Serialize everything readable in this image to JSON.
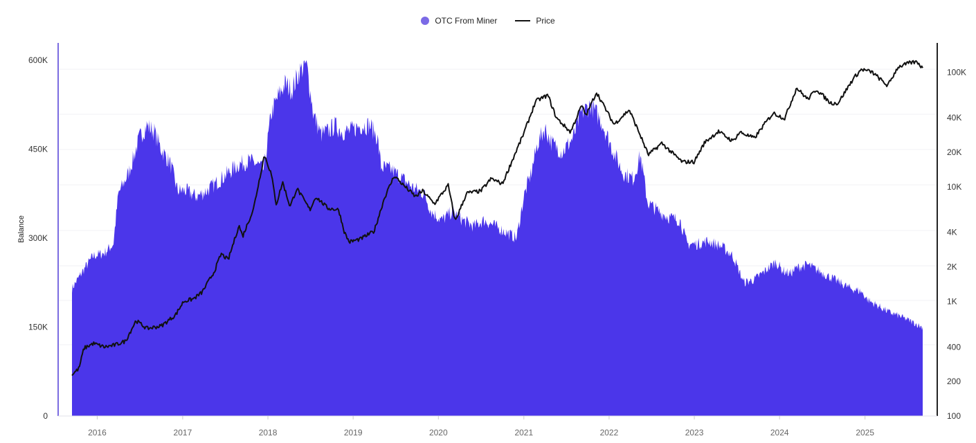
{
  "legend": {
    "series1": "OTC From Miner",
    "series2": "Price"
  },
  "colors": {
    "balance": "#4b36ea",
    "balance_legend": "#7b6ae6",
    "price": "#111111",
    "axis": "#7a6be0"
  },
  "chart_data": {
    "type": "area",
    "ylabel": "Balance",
    "y_left": {
      "min": 0,
      "max": 600000,
      "ticks": [
        0,
        150000,
        300000,
        450000,
        600000
      ],
      "tick_labels": [
        "0",
        "150K",
        "300K",
        "450K",
        "600K"
      ]
    },
    "y_right": {
      "scale": "log",
      "min": 100,
      "max": 180000,
      "ticks": [
        100,
        200,
        400,
        1000,
        2000,
        4000,
        10000,
        20000,
        40000,
        100000
      ],
      "tick_labels": [
        "100",
        "200",
        "400",
        "1K",
        "2K",
        "4K",
        "10K",
        "20K",
        "40K",
        "100K"
      ]
    },
    "x": {
      "min": "2015-09-15",
      "max": "2025-09-05",
      "ticks": [
        "2016-01-01",
        "2017-01-01",
        "2018-01-01",
        "2019-01-01",
        "2020-01-01",
        "2021-01-01",
        "2022-01-01",
        "2023-01-01",
        "2024-01-01",
        "2025-01-01"
      ],
      "tick_labels": [
        "2016",
        "2017",
        "2018",
        "2019",
        "2020",
        "2021",
        "2022",
        "2023",
        "2024",
        "2025"
      ]
    },
    "grid": true,
    "legend_position": "top-center",
    "series": [
      {
        "name": "OTC From Miner",
        "axis": "left",
        "type": "area",
        "points": [
          [
            "2015-09-15",
            215000
          ],
          [
            "2015-11-01",
            245000
          ],
          [
            "2015-12-15",
            270000
          ],
          [
            "2016-02-01",
            275000
          ],
          [
            "2016-03-10",
            290000
          ],
          [
            "2016-04-01",
            375000
          ],
          [
            "2016-05-15",
            410000
          ],
          [
            "2016-07-01",
            470000
          ],
          [
            "2016-08-01",
            490000
          ],
          [
            "2016-09-01",
            480000
          ],
          [
            "2016-10-01",
            450000
          ],
          [
            "2016-11-10",
            425000
          ],
          [
            "2016-12-10",
            380000
          ],
          [
            "2017-01-15",
            380000
          ],
          [
            "2017-03-01",
            370000
          ],
          [
            "2017-04-15",
            380000
          ],
          [
            "2017-06-01",
            395000
          ],
          [
            "2017-07-15",
            410000
          ],
          [
            "2017-09-01",
            425000
          ],
          [
            "2017-10-15",
            430000
          ],
          [
            "2017-11-15",
            425000
          ],
          [
            "2017-12-15",
            415000
          ],
          [
            "2018-01-15",
            510000
          ],
          [
            "2018-02-15",
            540000
          ],
          [
            "2018-03-15",
            560000
          ],
          [
            "2018-04-15",
            550000
          ],
          [
            "2018-05-15",
            580000
          ],
          [
            "2018-06-15",
            595000
          ],
          [
            "2018-07-15",
            510000
          ],
          [
            "2018-08-15",
            475000
          ],
          [
            "2018-09-15",
            480000
          ],
          [
            "2018-10-15",
            490000
          ],
          [
            "2018-11-15",
            480000
          ],
          [
            "2018-12-15",
            480000
          ],
          [
            "2019-02-01",
            490000
          ],
          [
            "2019-03-15",
            490000
          ],
          [
            "2019-04-15",
            470000
          ],
          [
            "2019-05-01",
            420000
          ],
          [
            "2019-06-15",
            415000
          ],
          [
            "2019-08-01",
            400000
          ],
          [
            "2019-09-15",
            385000
          ],
          [
            "2019-11-01",
            375000
          ],
          [
            "2019-12-01",
            345000
          ],
          [
            "2020-01-15",
            330000
          ],
          [
            "2020-03-01",
            345000
          ],
          [
            "2020-04-15",
            330000
          ],
          [
            "2020-06-01",
            320000
          ],
          [
            "2020-07-15",
            330000
          ],
          [
            "2020-09-01",
            320000
          ],
          [
            "2020-10-15",
            310000
          ],
          [
            "2020-12-01",
            300000
          ],
          [
            "2021-01-01",
            370000
          ],
          [
            "2021-02-01",
            410000
          ],
          [
            "2021-03-01",
            460000
          ],
          [
            "2021-04-01",
            485000
          ],
          [
            "2021-05-01",
            460000
          ],
          [
            "2021-06-15",
            445000
          ],
          [
            "2021-08-01",
            470000
          ],
          [
            "2021-09-01",
            510000
          ],
          [
            "2021-10-15",
            525000
          ],
          [
            "2021-12-01",
            495000
          ],
          [
            "2022-01-15",
            450000
          ],
          [
            "2022-03-01",
            410000
          ],
          [
            "2022-04-15",
            400000
          ],
          [
            "2022-05-15",
            440000
          ],
          [
            "2022-06-15",
            360000
          ],
          [
            "2022-08-01",
            345000
          ],
          [
            "2022-09-15",
            335000
          ],
          [
            "2022-11-01",
            330000
          ],
          [
            "2022-12-01",
            290000
          ],
          [
            "2023-01-15",
            290000
          ],
          [
            "2023-03-01",
            295000
          ],
          [
            "2023-05-01",
            285000
          ],
          [
            "2023-06-15",
            270000
          ],
          [
            "2023-08-01",
            225000
          ],
          [
            "2023-09-15",
            230000
          ],
          [
            "2023-11-01",
            245000
          ],
          [
            "2023-12-15",
            260000
          ],
          [
            "2024-01-15",
            245000
          ],
          [
            "2024-02-15",
            240000
          ],
          [
            "2024-03-15",
            250000
          ],
          [
            "2024-05-01",
            255000
          ],
          [
            "2024-06-15",
            245000
          ],
          [
            "2024-08-01",
            235000
          ],
          [
            "2024-09-15",
            225000
          ],
          [
            "2024-11-01",
            215000
          ],
          [
            "2024-12-15",
            210000
          ],
          [
            "2025-01-15",
            195000
          ],
          [
            "2025-03-01",
            185000
          ],
          [
            "2025-04-15",
            175000
          ],
          [
            "2025-06-01",
            168000
          ],
          [
            "2025-07-15",
            160000
          ],
          [
            "2025-09-01",
            150000
          ]
        ]
      },
      {
        "name": "Price",
        "axis": "right",
        "type": "line",
        "points": [
          [
            "2015-09-15",
            230
          ],
          [
            "2015-10-15",
            260
          ],
          [
            "2015-11-05",
            390
          ],
          [
            "2015-12-15",
            430
          ],
          [
            "2016-02-01",
            400
          ],
          [
            "2016-03-15",
            415
          ],
          [
            "2016-05-01",
            450
          ],
          [
            "2016-06-15",
            680
          ],
          [
            "2016-08-01",
            580
          ],
          [
            "2016-10-01",
            610
          ],
          [
            "2016-12-01",
            760
          ],
          [
            "2017-01-05",
            1000
          ],
          [
            "2017-02-15",
            1050
          ],
          [
            "2017-03-25",
            1200
          ],
          [
            "2017-05-15",
            1800
          ],
          [
            "2017-06-15",
            2600
          ],
          [
            "2017-07-15",
            2300
          ],
          [
            "2017-08-30",
            4600
          ],
          [
            "2017-09-15",
            3700
          ],
          [
            "2017-10-31",
            6400
          ],
          [
            "2017-12-17",
            19000
          ],
          [
            "2018-01-15",
            13000
          ],
          [
            "2018-02-06",
            7000
          ],
          [
            "2018-03-05",
            11000
          ],
          [
            "2018-04-06",
            6700
          ],
          [
            "2018-05-05",
            9700
          ],
          [
            "2018-06-30",
            6300
          ],
          [
            "2018-07-25",
            8200
          ],
          [
            "2018-09-15",
            6500
          ],
          [
            "2018-10-31",
            6300
          ],
          [
            "2018-11-25",
            4000
          ],
          [
            "2018-12-15",
            3300
          ],
          [
            "2019-02-01",
            3500
          ],
          [
            "2019-04-01",
            4100
          ],
          [
            "2019-05-15",
            8000
          ],
          [
            "2019-06-26",
            12500
          ],
          [
            "2019-08-01",
            10500
          ],
          [
            "2019-09-25",
            8200
          ],
          [
            "2019-10-26",
            9200
          ],
          [
            "2019-12-15",
            7100
          ],
          [
            "2020-02-12",
            10300
          ],
          [
            "2020-03-13",
            5000
          ],
          [
            "2020-05-01",
            8800
          ],
          [
            "2020-07-01",
            9200
          ],
          [
            "2020-08-15",
            11800
          ],
          [
            "2020-10-01",
            10600
          ],
          [
            "2020-11-20",
            18500
          ],
          [
            "2020-12-31",
            29000
          ],
          [
            "2021-02-21",
            56000
          ],
          [
            "2021-04-14",
            63000
          ],
          [
            "2021-05-20",
            40000
          ],
          [
            "2021-07-20",
            30000
          ],
          [
            "2021-09-05",
            51000
          ],
          [
            "2021-09-25",
            42000
          ],
          [
            "2021-11-08",
            67000
          ],
          [
            "2022-01-22",
            35000
          ],
          [
            "2022-03-28",
            47000
          ],
          [
            "2022-05-12",
            29000
          ],
          [
            "2022-06-18",
            19000
          ],
          [
            "2022-08-15",
            24000
          ],
          [
            "2022-10-01",
            19500
          ],
          [
            "2022-11-10",
            16500
          ],
          [
            "2022-12-31",
            16500
          ],
          [
            "2023-02-15",
            24500
          ],
          [
            "2023-04-14",
            30400
          ],
          [
            "2023-06-15",
            25000
          ],
          [
            "2023-07-15",
            30000
          ],
          [
            "2023-09-15",
            26500
          ],
          [
            "2023-10-25",
            34500
          ],
          [
            "2023-12-05",
            44000
          ],
          [
            "2024-01-23",
            39500
          ],
          [
            "2024-03-14",
            73000
          ],
          [
            "2024-05-01",
            58000
          ],
          [
            "2024-06-07",
            71000
          ],
          [
            "2024-08-05",
            54000
          ],
          [
            "2024-09-07",
            53500
          ],
          [
            "2024-11-12",
            88000
          ],
          [
            "2024-12-17",
            106000
          ],
          [
            "2025-02-01",
            100000
          ],
          [
            "2025-04-08",
            76000
          ],
          [
            "2025-05-22",
            111000
          ],
          [
            "2025-07-14",
            121000
          ],
          [
            "2025-08-14",
            123000
          ],
          [
            "2025-09-01",
            110000
          ]
        ]
      }
    ]
  }
}
